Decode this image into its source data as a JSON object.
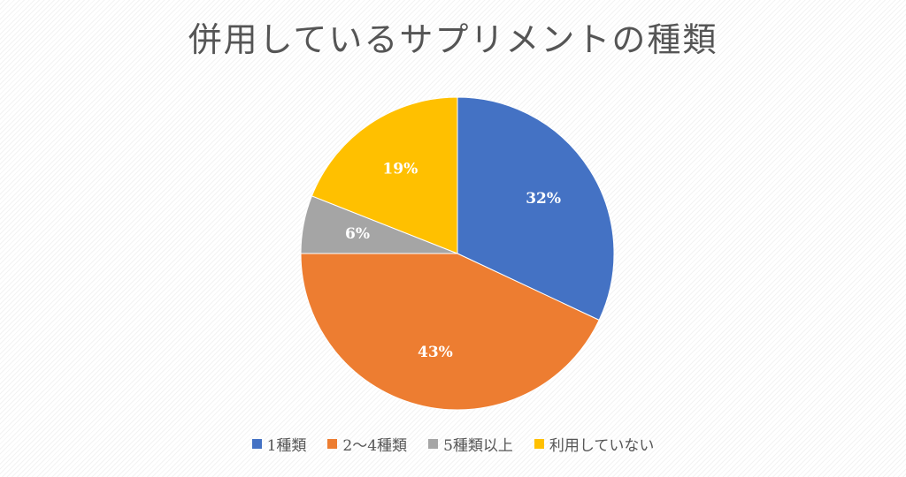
{
  "chart_data": {
    "type": "pie",
    "title": "併用しているサプリメントの種類",
    "slices": [
      {
        "label": "1種類",
        "value": 32,
        "display": "32%",
        "color": "#4472c4"
      },
      {
        "label": "2〜4種類",
        "value": 43,
        "display": "43%",
        "color": "#ed7d31"
      },
      {
        "label": "5種類以上",
        "value": 6,
        "display": "6%",
        "color": "#a5a5a5"
      },
      {
        "label": "利用していない",
        "value": 19,
        "display": "19%",
        "color": "#ffc000"
      }
    ],
    "legend_position": "bottom"
  }
}
